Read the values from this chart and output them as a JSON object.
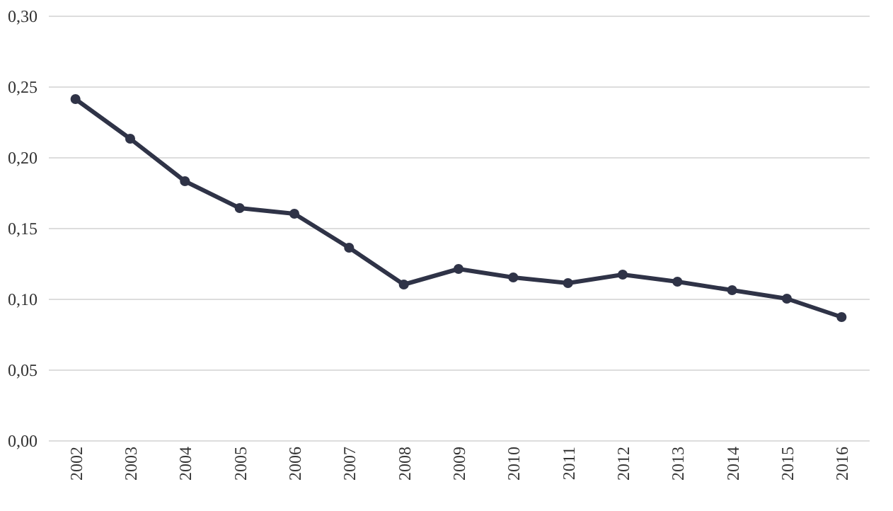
{
  "chart_data": {
    "type": "line",
    "categories": [
      "2002",
      "2003",
      "2004",
      "2005",
      "2006",
      "2007",
      "2008",
      "2009",
      "2010",
      "2011",
      "2012",
      "2013",
      "2014",
      "2015",
      "2016"
    ],
    "series": [
      {
        "color": "#2f3347",
        "values": [
          0.241,
          0.213,
          0.183,
          0.164,
          0.16,
          0.136,
          0.11,
          0.121,
          0.115,
          0.111,
          0.117,
          0.112,
          0.106,
          0.1,
          0.087
        ]
      }
    ],
    "ylim": [
      0,
      0.3
    ],
    "yticks": [
      {
        "value": 0,
        "label": "0,00"
      },
      {
        "value": 0.05,
        "label": "0,05"
      },
      {
        "value": 0.1,
        "label": "0,10"
      },
      {
        "value": 0.15,
        "label": "0,15"
      },
      {
        "value": 0.2,
        "label": "0,20"
      },
      {
        "value": 0.25,
        "label": "0,25"
      },
      {
        "value": 0.3,
        "label": "0,30"
      }
    ],
    "grid": "y",
    "marker": "circle",
    "line_style": "solid",
    "legend": false
  }
}
